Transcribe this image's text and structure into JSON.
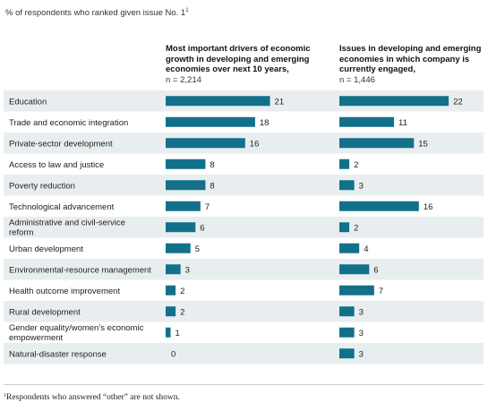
{
  "subtitle": "% of respondents who ranked given issue No. 1",
  "subtitle_marker": "1",
  "footnote_marker": "1",
  "footnote_text": "Respondents who answered “other” are not shown.",
  "colors": {
    "bar": "#13708a",
    "row_alt": "#e8eef0",
    "row": "#ffffff"
  },
  "chart_data": {
    "type": "bar",
    "orientation": "horizontal",
    "categories": [
      "Education",
      "Trade and economic integration",
      "Private-sector development",
      "Access to law and justice",
      "Poverty reduction",
      "Technological advancement",
      "Administrative and civil-service reform",
      "Urban development",
      "Environmental-resource management",
      "Health outcome improvement",
      "Rural development",
      "Gender equality/women’s economic empowerment",
      "Natural-disaster response"
    ],
    "series": [
      {
        "name": "Most important drivers of economic growth in developing and emerging economies over next 10 years,",
        "n_label": "n = 2,214",
        "values": [
          21,
          18,
          16,
          8,
          8,
          7,
          6,
          5,
          3,
          2,
          2,
          1,
          0
        ]
      },
      {
        "name": "Issues in developing and emerging economies in which company is currently engaged,",
        "n_label": "n = 1,446",
        "values": [
          22,
          11,
          15,
          2,
          3,
          16,
          2,
          4,
          6,
          7,
          3,
          3,
          3
        ]
      }
    ]
  }
}
